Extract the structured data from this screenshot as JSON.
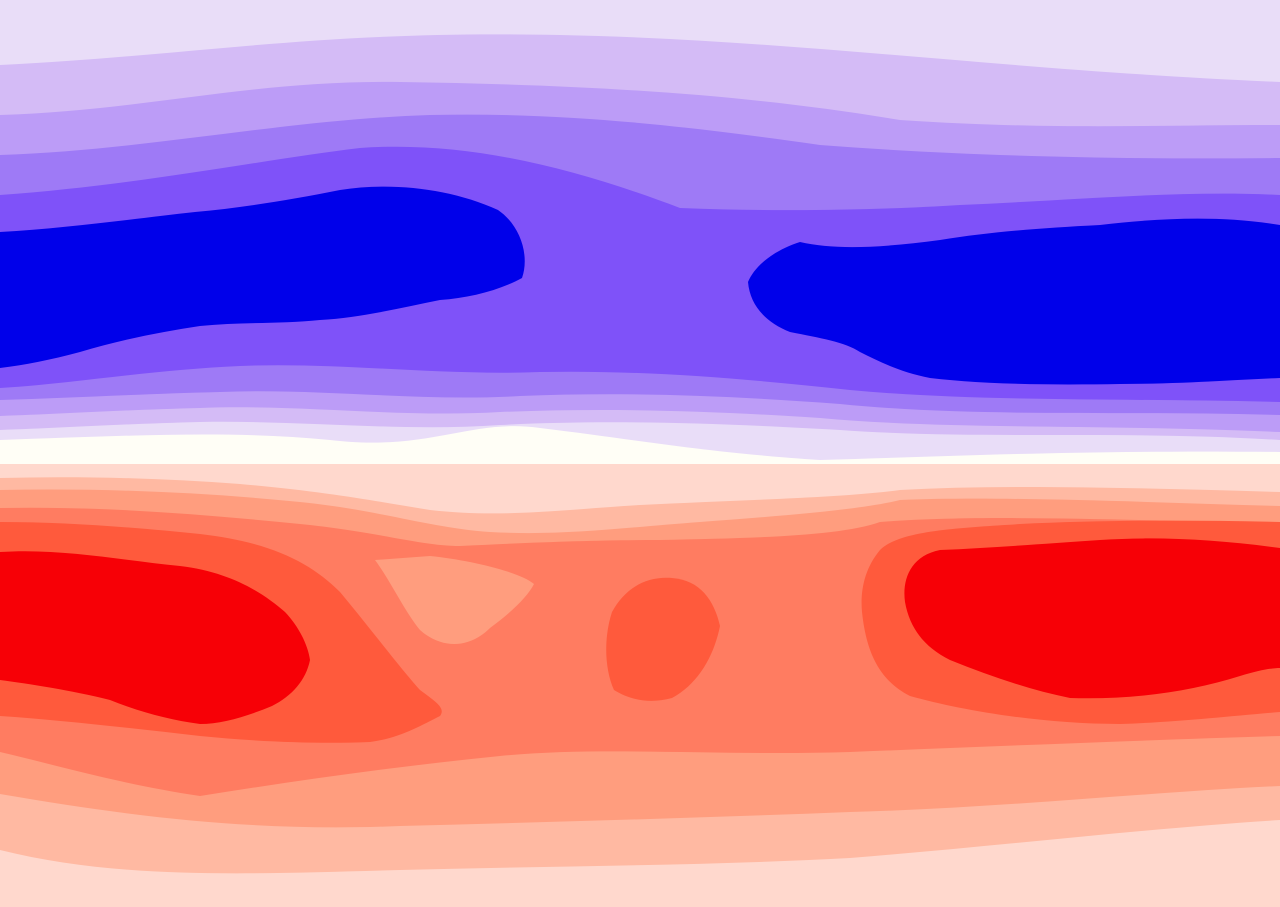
{
  "image": {
    "kind": "filled contour field",
    "palette": {
      "blue_7": "#0000EA",
      "blue_6": "#7F52F9",
      "blue_5": "#9E7AF6",
      "blue_4": "#BC9CF7",
      "blue_3": "#D4BBF6",
      "blue_2": "#E9DDF8",
      "neutral": "#FFFEF6",
      "red_1": "#FFD8CD",
      "red_2": "#FFB9A2",
      "red_3": "#FF9D7E",
      "red_4": "#FF7C61",
      "red_5": "#FF5A3C",
      "red_6": "#F70006"
    }
  }
}
